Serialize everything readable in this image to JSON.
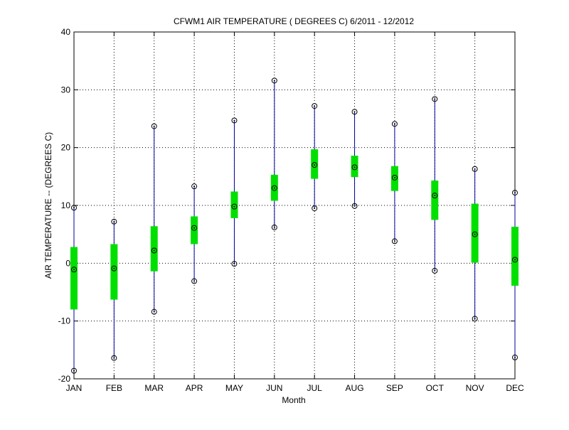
{
  "chart_data": {
    "type": "box",
    "title": "CFWM1  AIR TEMPERATURE ( DEGREES C) 6/2011 - 12/2012",
    "xlabel": "Month",
    "ylabel": "AIR TEMPERATURE -- (DEGREES C)",
    "ylim": [
      -20,
      40
    ],
    "yticks": [
      "-20",
      "-10",
      "0",
      "10",
      "20",
      "30",
      "40"
    ],
    "grid": true,
    "categories": [
      "JAN",
      "FEB",
      "MAR",
      "APR",
      "MAY",
      "JUN",
      "JUL",
      "AUG",
      "SEP",
      "OCT",
      "NOV",
      "DEC"
    ],
    "min": [
      -18.6,
      -16.4,
      -8.4,
      -3.1,
      -0.1,
      6.2,
      9.5,
      9.9,
      3.8,
      -1.3,
      -9.6,
      -16.3
    ],
    "q1": [
      -8.0,
      -6.3,
      -1.4,
      3.3,
      7.8,
      10.8,
      14.6,
      14.9,
      12.5,
      7.5,
      0.1,
      -3.9
    ],
    "median": [
      -1.1,
      -0.9,
      2.2,
      6.1,
      9.8,
      13.0,
      17.0,
      16.6,
      14.8,
      11.7,
      5.0,
      0.6
    ],
    "q3": [
      2.8,
      3.3,
      6.4,
      8.1,
      12.4,
      15.3,
      19.7,
      18.6,
      16.8,
      14.3,
      10.3,
      6.3
    ],
    "max": [
      9.6,
      7.2,
      23.7,
      13.3,
      24.7,
      31.6,
      27.2,
      26.2,
      24.1,
      28.4,
      16.3,
      12.2
    ],
    "colors": {
      "whisker": "#0000a0",
      "box": "#00e000",
      "marker": "#000000"
    }
  }
}
